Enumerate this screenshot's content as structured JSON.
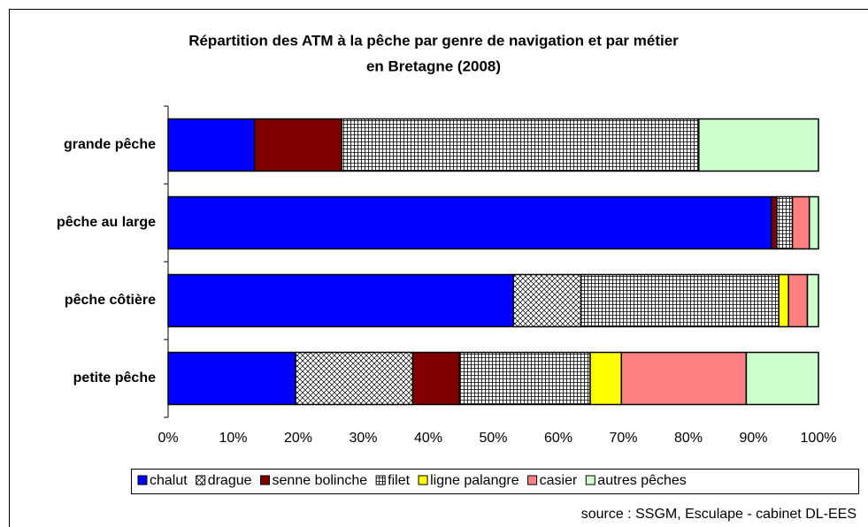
{
  "chart_data": {
    "type": "stacked-bar-horizontal",
    "title": [
      "Répartition des ATM à la pêche par genre de navigation et par métier",
      "en Bretagne (2008)"
    ],
    "categories": [
      "grande pêche",
      "pêche au large",
      "pêche côtière",
      "petite pêche"
    ],
    "series": [
      {
        "name": "chalut",
        "color": "#0000ff",
        "values": [
          13.3,
          92.8,
          53.1,
          19.6
        ]
      },
      {
        "name": "drague",
        "color": "#ffffff",
        "pattern": "crosshatch",
        "values": [
          0,
          0,
          10.4,
          18.0
        ]
      },
      {
        "name": "senne bolinche",
        "color": "#800000",
        "values": [
          13.4,
          0.8,
          0,
          7.2
        ]
      },
      {
        "name": "filet",
        "color": "#ffffff",
        "pattern": "grid",
        "values": [
          54.9,
          2.4,
          30.4,
          20.1
        ]
      },
      {
        "name": "ligne palangre",
        "color": "#ffff00",
        "values": [
          0,
          0,
          1.5,
          4.8
        ]
      },
      {
        "name": "casier",
        "color": "#ff8080",
        "values": [
          0,
          2.6,
          2.9,
          19.2
        ]
      },
      {
        "name": "autres pêches",
        "color": "#ccffcc",
        "values": [
          18.4,
          1.4,
          1.7,
          11.1
        ]
      }
    ],
    "xlim": [
      0,
      100
    ],
    "xticks": [
      {
        "value": 0,
        "label": "0%"
      },
      {
        "value": 10,
        "label": "10%"
      },
      {
        "value": 20,
        "label": "20%"
      },
      {
        "value": 30,
        "label": "30%"
      },
      {
        "value": 40,
        "label": "40%"
      },
      {
        "value": 50,
        "label": "50%"
      },
      {
        "value": 60,
        "label": "60%"
      },
      {
        "value": 70,
        "label": "70%"
      },
      {
        "value": 80,
        "label": "80%"
      },
      {
        "value": 90,
        "label": "90%"
      },
      {
        "value": 100,
        "label": "100%"
      }
    ],
    "legend": "bottom",
    "source": "source : SSGM, Esculape - cabinet DL-EES"
  }
}
